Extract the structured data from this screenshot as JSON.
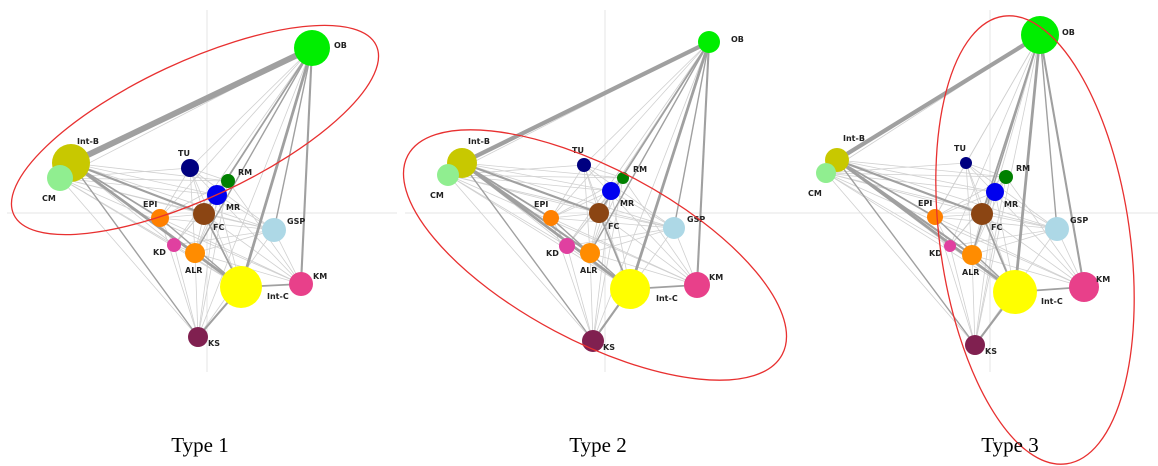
{
  "panels": [
    {
      "caption": "Type 1"
    },
    {
      "caption": "Type 2"
    },
    {
      "caption": "Type 3"
    }
  ],
  "nodes": [
    {
      "label": "OB"
    },
    {
      "label": "Int-B"
    },
    {
      "label": "CM"
    },
    {
      "label": "TU"
    },
    {
      "label": "RM"
    },
    {
      "label": "MR"
    },
    {
      "label": "EPI"
    },
    {
      "label": "FC"
    },
    {
      "label": "GSP"
    },
    {
      "label": "KD"
    },
    {
      "label": "ALR"
    },
    {
      "label": "KM"
    },
    {
      "label": "Int-C"
    },
    {
      "label": "KS"
    }
  ]
}
